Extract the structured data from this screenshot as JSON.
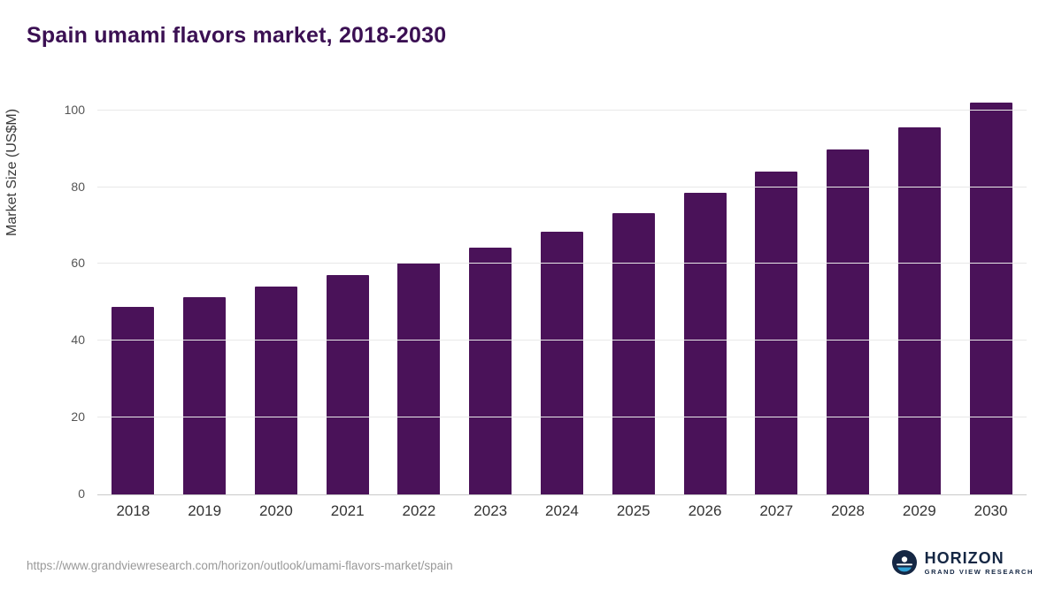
{
  "title": "Spain umami flavors market, 2018-2030",
  "chart_data": {
    "type": "bar",
    "categories": [
      "2018",
      "2019",
      "2020",
      "2021",
      "2022",
      "2023",
      "2024",
      "2025",
      "2026",
      "2027",
      "2028",
      "2029",
      "2030"
    ],
    "values": [
      48.8,
      51.4,
      54.2,
      57.1,
      60.4,
      64.3,
      68.5,
      73.3,
      78.6,
      84.0,
      89.7,
      95.5,
      102.0
    ],
    "title": "Spain umami flavors market, 2018-2030",
    "xlabel": "",
    "ylabel": "Market Size (US$M)",
    "ylim": [
      0,
      105
    ],
    "yticks": [
      0,
      20,
      40,
      60,
      80,
      100
    ],
    "grid": true,
    "legend": "none",
    "bar_color": "#4a1259"
  },
  "colors": {
    "title": "#3b1053",
    "bar": "#4a1259",
    "grid": "#e8e8e8",
    "axis_text": "#555555",
    "logo_navy": "#152744"
  },
  "footer": {
    "url": "https://www.grandviewresearch.com/horizon/outlook/umami-flavors-market/spain"
  },
  "logo": {
    "name": "HORIZON",
    "subtitle": "GRAND VIEW RESEARCH"
  }
}
